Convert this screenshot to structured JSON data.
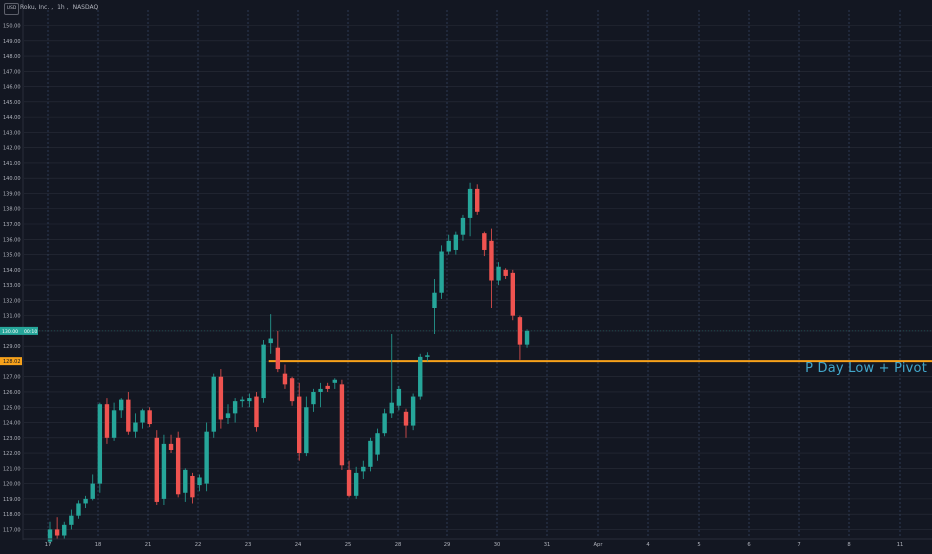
{
  "header": {
    "currency": "USD",
    "symbol_title": "Roku, Inc.",
    "interval": "1h",
    "exchange": "NASDAQ"
  },
  "price_labels": {
    "current_left": "130.00",
    "current_right": "00:10",
    "level": "128.02"
  },
  "annotation": "P Day Low + Pivot",
  "colors": {
    "up": "#26a69a",
    "down": "#ef5350",
    "level_line": "#f7a21b",
    "annotation": "#42a5c8",
    "grid": "#2a2e39",
    "session_separator": "#3b4a66"
  },
  "chart_data": {
    "type": "candlestick",
    "title": "Roku, Inc., 1h, NASDAQ",
    "ylim": [
      116.2,
      151.0
    ],
    "y_ticks": [
      117,
      118,
      119,
      120,
      121,
      122,
      123,
      124,
      125,
      126,
      127,
      128,
      129,
      130,
      131,
      132,
      133,
      134,
      135,
      136,
      137,
      138,
      139,
      140,
      141,
      142,
      143,
      144,
      145,
      146,
      147,
      148,
      149,
      150
    ],
    "x_tick_labels": [
      "17",
      "18",
      "21",
      "22",
      "23",
      "24",
      "25",
      "28",
      "29",
      "30",
      "31",
      "Apr",
      "4",
      "5",
      "6",
      "7",
      "8",
      "11"
    ],
    "horizontal_level": {
      "value": 128.02,
      "label": "P Day Low + Pivot"
    },
    "candles": [
      {
        "o": 116.2,
        "h": 117.5,
        "l": 116.0,
        "c": 117.0
      },
      {
        "o": 117.0,
        "h": 117.8,
        "l": 116.4,
        "c": 116.6
      },
      {
        "o": 116.6,
        "h": 117.5,
        "l": 116.4,
        "c": 117.3
      },
      {
        "o": 117.3,
        "h": 118.3,
        "l": 117.0,
        "c": 117.9
      },
      {
        "o": 117.9,
        "h": 118.9,
        "l": 117.7,
        "c": 118.7
      },
      {
        "o": 118.7,
        "h": 119.2,
        "l": 118.4,
        "c": 119.0
      },
      {
        "o": 119.0,
        "h": 120.6,
        "l": 118.9,
        "c": 120.0
      },
      {
        "o": 120.0,
        "h": 125.3,
        "l": 119.4,
        "c": 125.2
      },
      {
        "o": 125.2,
        "h": 125.6,
        "l": 122.6,
        "c": 123.0
      },
      {
        "o": 123.0,
        "h": 125.3,
        "l": 122.8,
        "c": 124.8
      },
      {
        "o": 124.8,
        "h": 125.6,
        "l": 124.3,
        "c": 125.5
      },
      {
        "o": 125.5,
        "h": 126.0,
        "l": 123.2,
        "c": 123.4
      },
      {
        "o": 123.4,
        "h": 124.6,
        "l": 123.0,
        "c": 124.0
      },
      {
        "o": 124.0,
        "h": 124.9,
        "l": 123.6,
        "c": 124.8
      },
      {
        "o": 124.8,
        "h": 125.0,
        "l": 123.7,
        "c": 123.9
      },
      {
        "o": 123.0,
        "h": 123.5,
        "l": 118.6,
        "c": 118.8
      },
      {
        "o": 119.0,
        "h": 123.2,
        "l": 118.6,
        "c": 122.6
      },
      {
        "o": 122.6,
        "h": 123.2,
        "l": 122.0,
        "c": 122.2
      },
      {
        "o": 123.0,
        "h": 123.4,
        "l": 119.1,
        "c": 119.3
      },
      {
        "o": 119.4,
        "h": 121.0,
        "l": 118.8,
        "c": 120.9
      },
      {
        "o": 120.5,
        "h": 120.7,
        "l": 118.7,
        "c": 119.1
      },
      {
        "o": 119.9,
        "h": 120.6,
        "l": 119.5,
        "c": 120.4
      },
      {
        "o": 120.0,
        "h": 124.0,
        "l": 119.5,
        "c": 123.4
      },
      {
        "o": 123.4,
        "h": 127.2,
        "l": 123.0,
        "c": 127.0
      },
      {
        "o": 127.0,
        "h": 127.5,
        "l": 123.6,
        "c": 124.2
      },
      {
        "o": 124.3,
        "h": 125.2,
        "l": 123.9,
        "c": 124.6
      },
      {
        "o": 124.6,
        "h": 125.6,
        "l": 124.0,
        "c": 125.4
      },
      {
        "o": 125.4,
        "h": 125.7,
        "l": 125.0,
        "c": 125.5
      },
      {
        "o": 125.4,
        "h": 125.9,
        "l": 125.0,
        "c": 125.6
      },
      {
        "o": 125.7,
        "h": 126.0,
        "l": 123.4,
        "c": 123.7
      },
      {
        "o": 125.6,
        "h": 129.4,
        "l": 125.3,
        "c": 129.1
      },
      {
        "o": 129.2,
        "h": 131.1,
        "l": 128.5,
        "c": 129.5
      },
      {
        "o": 128.9,
        "h": 130.0,
        "l": 127.3,
        "c": 127.5
      },
      {
        "o": 127.2,
        "h": 127.8,
        "l": 126.2,
        "c": 126.5
      },
      {
        "o": 126.9,
        "h": 127.0,
        "l": 125.1,
        "c": 125.4
      },
      {
        "o": 125.7,
        "h": 126.6,
        "l": 121.5,
        "c": 122.0
      },
      {
        "o": 122.0,
        "h": 125.7,
        "l": 121.8,
        "c": 125.0
      },
      {
        "o": 125.2,
        "h": 126.2,
        "l": 124.7,
        "c": 126.0
      },
      {
        "o": 126.0,
        "h": 126.6,
        "l": 125.0,
        "c": 126.2
      },
      {
        "o": 126.4,
        "h": 126.6,
        "l": 126.0,
        "c": 126.2
      },
      {
        "o": 126.6,
        "h": 126.9,
        "l": 126.2,
        "c": 126.8
      },
      {
        "o": 126.5,
        "h": 126.8,
        "l": 120.9,
        "c": 121.2
      },
      {
        "o": 120.9,
        "h": 121.5,
        "l": 119.1,
        "c": 119.2
      },
      {
        "o": 119.2,
        "h": 121.1,
        "l": 119.0,
        "c": 120.7
      },
      {
        "o": 120.8,
        "h": 121.5,
        "l": 120.3,
        "c": 121.1
      },
      {
        "o": 121.1,
        "h": 123.0,
        "l": 120.8,
        "c": 122.8
      },
      {
        "o": 121.9,
        "h": 123.6,
        "l": 121.5,
        "c": 123.3
      },
      {
        "o": 123.3,
        "h": 124.9,
        "l": 123.1,
        "c": 124.6
      },
      {
        "o": 124.6,
        "h": 129.8,
        "l": 124.3,
        "c": 125.3
      },
      {
        "o": 125.1,
        "h": 126.4,
        "l": 124.8,
        "c": 126.2
      },
      {
        "o": 124.7,
        "h": 124.9,
        "l": 123.0,
        "c": 123.8
      },
      {
        "o": 123.8,
        "h": 125.9,
        "l": 123.5,
        "c": 125.7
      },
      {
        "o": 125.7,
        "h": 128.5,
        "l": 125.5,
        "c": 128.3
      },
      {
        "o": 128.3,
        "h": 128.6,
        "l": 128.0,
        "c": 128.4
      },
      {
        "o": 131.5,
        "h": 133.4,
        "l": 129.8,
        "c": 132.5
      },
      {
        "o": 132.5,
        "h": 135.6,
        "l": 132.1,
        "c": 135.2
      },
      {
        "o": 135.2,
        "h": 136.3,
        "l": 135.0,
        "c": 135.9
      },
      {
        "o": 135.3,
        "h": 136.5,
        "l": 135.0,
        "c": 136.3
      },
      {
        "o": 136.3,
        "h": 137.6,
        "l": 135.9,
        "c": 137.4
      },
      {
        "o": 137.4,
        "h": 139.7,
        "l": 136.2,
        "c": 139.3
      },
      {
        "o": 139.3,
        "h": 139.6,
        "l": 137.6,
        "c": 137.8
      },
      {
        "o": 136.4,
        "h": 136.5,
        "l": 134.9,
        "c": 135.3
      },
      {
        "o": 135.9,
        "h": 136.7,
        "l": 131.5,
        "c": 133.3
      },
      {
        "o": 133.3,
        "h": 134.5,
        "l": 133.0,
        "c": 134.2
      },
      {
        "o": 134.0,
        "h": 134.1,
        "l": 133.4,
        "c": 133.6
      },
      {
        "o": 133.8,
        "h": 134.0,
        "l": 130.7,
        "c": 131.0
      },
      {
        "o": 130.9,
        "h": 131.0,
        "l": 128.1,
        "c": 129.1
      },
      {
        "o": 129.1,
        "h": 130.1,
        "l": 128.9,
        "c": 130.0
      }
    ]
  }
}
